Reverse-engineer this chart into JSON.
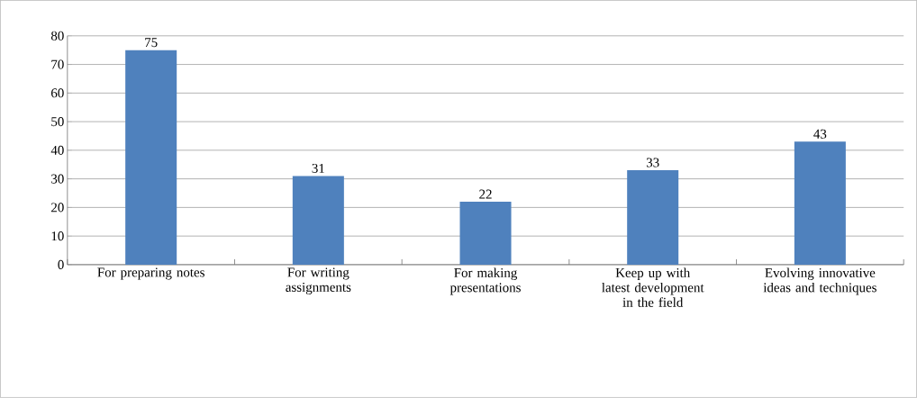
{
  "chart_data": {
    "type": "bar",
    "categories": [
      "For preparing notes",
      "For writing assignments",
      "For making presentations",
      "Keep up with latest development in the field",
      "Evolving innovative ideas and techniques"
    ],
    "values": [
      75,
      31,
      22,
      33,
      43
    ],
    "color": "#4f81bd",
    "ylim": [
      0,
      80
    ],
    "yticks": [
      0,
      10,
      20,
      30,
      40,
      50,
      60,
      70,
      80
    ],
    "grid": "y",
    "data_labels": true
  }
}
